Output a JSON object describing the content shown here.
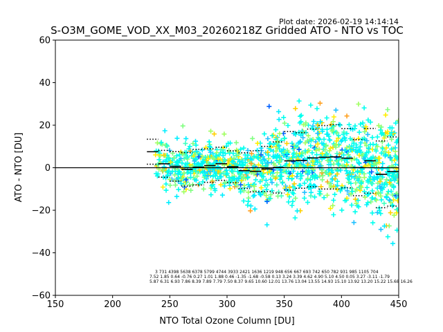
{
  "chart_data": {
    "type": "scatter",
    "plot_date": "Plot date: 2026-02-19 14:14:14",
    "title": "S-O3M_GOME_VOD_XX_M03_20260218Z Gridded ATO - NTO vs TOC",
    "xlabel": "NTO Total Ozone Column [DU]",
    "ylabel": "ATO - NTO [DU]",
    "xlim": [
      150,
      450
    ],
    "ylim": [
      -60,
      60
    ],
    "xticks": [
      "150",
      "200",
      "250",
      "300",
      "350",
      "400",
      "450"
    ],
    "yticks": [
      "−60",
      "−40",
      "−20",
      "0",
      "20",
      "40",
      "60"
    ],
    "xtick_values": [
      150,
      200,
      250,
      300,
      350,
      400,
      450
    ],
    "ytick_values": [
      -60,
      -40,
      -20,
      0,
      20,
      40,
      60
    ],
    "bins_x": [
      230,
      240,
      250,
      260,
      270,
      280,
      290,
      300,
      310,
      320,
      330,
      340,
      350,
      360,
      370,
      380,
      390,
      400,
      410,
      420,
      430,
      440,
      450
    ],
    "bin_mean": [
      7.52,
      1.85,
      0.64,
      -0.76,
      0.27,
      1.01,
      1.88,
      0.46,
      -1.35,
      -1.68,
      -0.58,
      0.13,
      3.24,
      3.39,
      4.62,
      4.9,
      5.1,
      4.5,
      0.05,
      3.27,
      -3.11,
      -1.79
    ],
    "bin_std": [
      5.87,
      6.31,
      6.93,
      7.86,
      8.39,
      7.89,
      7.79,
      7.5,
      8.37,
      9.65,
      10.6,
      12.01,
      13.76,
      13.04,
      13.55,
      14.93,
      15.1,
      13.92,
      13.2,
      15.22,
      15.68,
      16.26
    ],
    "stats_row_counts": "3   731 4398 5638 6378 5799 4744 3933 2421 1636 1219 948   656  667   693   742    650  782    931  985 1105  704",
    "stats_row_means": "7.52 1.85 0.64 -0.76 0.27 1.01 1.88 0.46 -1.35 -1.68 -0.58 0.13 3.24 3.39 4.62 4.90 5.10 4.50 0.05 3.27 -3.11 -1.79",
    "stats_row_stds": "5.87 6.31 6.93 7.86 8.39 7.89 7.79 7.50 8.37 9.65 10.60 12.01 13.76 13.04 13.55 14.93 15.10 13.92 13.20 15.22 15.68 16.26",
    "scatter_colors": [
      "#00ffee",
      "#00eeff",
      "#80ff80",
      "#a0ff60",
      "#ffee00",
      "#ffd000",
      "#20c0ff",
      "#0060ff",
      "#40ffc0",
      "#ffa020"
    ]
  }
}
